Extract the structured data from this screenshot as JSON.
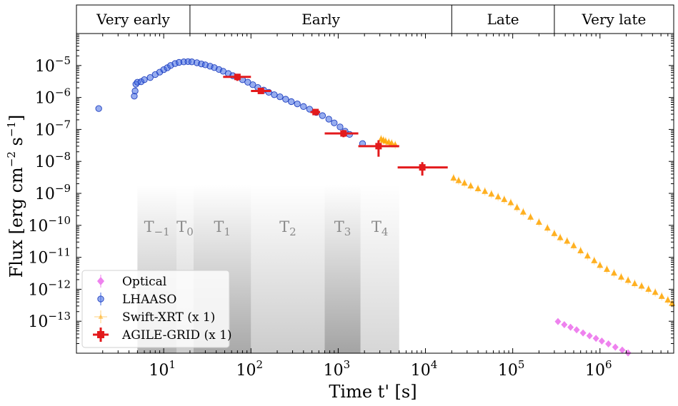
{
  "chart_data": {
    "type": "scatter",
    "xlabel": "Time t' [s]",
    "ylabel_parts": [
      "Flux [erg cm",
      "−2",
      " s",
      "−1",
      "]"
    ],
    "xscale": "log",
    "yscale": "log",
    "xlim": [
      1.0,
      7000000
    ],
    "ylim": [
      1e-14,
      0.0001
    ],
    "x_ticks": [
      {
        "value": 10,
        "base": "10",
        "exp": "1"
      },
      {
        "value": 100,
        "base": "10",
        "exp": "2"
      },
      {
        "value": 1000,
        "base": "10",
        "exp": "3"
      },
      {
        "value": 10000,
        "base": "10",
        "exp": "4"
      },
      {
        "value": 100000,
        "base": "10",
        "exp": "5"
      },
      {
        "value": 1000000,
        "base": "10",
        "exp": "6"
      }
    ],
    "y_ticks": [
      {
        "value": 1e-13,
        "base": "10",
        "exp": "−13"
      },
      {
        "value": 1e-12,
        "base": "10",
        "exp": "−12"
      },
      {
        "value": 1e-11,
        "base": "10",
        "exp": "−11"
      },
      {
        "value": 1e-10,
        "base": "10",
        "exp": "−10"
      },
      {
        "value": 1e-09,
        "base": "10",
        "exp": "−9"
      },
      {
        "value": 1e-08,
        "base": "10",
        "exp": "−8"
      },
      {
        "value": 1e-07,
        "base": "10",
        "exp": "−7"
      },
      {
        "value": 1e-06,
        "base": "10",
        "exp": "−6"
      },
      {
        "value": 1e-05,
        "base": "10",
        "exp": "−5"
      }
    ],
    "phases": [
      {
        "label": "Very early",
        "start": 1.0,
        "end": 20
      },
      {
        "label": "Early",
        "start": 20,
        "end": 20000
      },
      {
        "label": "Late",
        "start": 20000,
        "end": 300000
      },
      {
        "label": "Very late",
        "start": 300000,
        "end": 7000000
      }
    ],
    "intervals": [
      {
        "label": "T",
        "sub": "−1",
        "start": 5,
        "end": 14
      },
      {
        "label": "T",
        "sub": "0",
        "start": 14,
        "end": 22
      },
      {
        "label": "T",
        "sub": "1",
        "start": 22,
        "end": 100
      },
      {
        "label": "T",
        "sub": "2",
        "start": 100,
        "end": 700
      },
      {
        "label": "T",
        "sub": "3",
        "start": 700,
        "end": 1800
      },
      {
        "label": "T",
        "sub": "4",
        "start": 1800,
        "end": 5000
      }
    ],
    "legend": [
      {
        "label": "Optical",
        "color": "#ee82ee",
        "marker": "diamond"
      },
      {
        "label": "LHAASO",
        "color": "#4169e1",
        "marker": "circle"
      },
      {
        "label": "Swift-XRT (x 1)",
        "color": "#ffa500",
        "marker": "triangle"
      },
      {
        "label": "AGILE-GRID (x 1)",
        "color": "#e31a1c",
        "marker": "square"
      }
    ],
    "series": [
      {
        "name": "LHAASO",
        "color": "#4169e1",
        "points": [
          [
            1.8,
            4.5e-07
          ],
          [
            4.6,
            1.1e-06
          ],
          [
            4.7,
            1.6e-06
          ],
          [
            4.8,
            2.6e-06
          ],
          [
            5.0,
            3e-06
          ],
          [
            5.5,
            3.1e-06
          ],
          [
            6.0,
            3.6e-06
          ],
          [
            7.0,
            4.2e-06
          ],
          [
            8.0,
            5.2e-06
          ],
          [
            9.0,
            6.2e-06
          ],
          [
            10.0,
            7.4e-06
          ],
          [
            11.0,
            8.5e-06
          ],
          [
            12.0,
            1e-05
          ],
          [
            13.5,
            1.15e-05
          ],
          [
            15.0,
            1.25e-05
          ],
          [
            17.0,
            1.3e-05
          ],
          [
            19.0,
            1.32e-05
          ],
          [
            21.0,
            1.3e-05
          ],
          [
            24.0,
            1.22e-05
          ],
          [
            27.0,
            1.12e-05
          ],
          [
            30.0,
            1.05e-05
          ],
          [
            34.0,
            9.5e-06
          ],
          [
            38.0,
            8.6e-06
          ],
          [
            43.0,
            7.5e-06
          ],
          [
            48.0,
            6.6e-06
          ],
          [
            55.0,
            5.6e-06
          ],
          [
            62.0,
            4.8e-06
          ],
          [
            70.0,
            4.3e-06
          ],
          [
            80.0,
            3.6e-06
          ],
          [
            92.0,
            3e-06
          ],
          [
            105.0,
            2.5e-06
          ],
          [
            120.0,
            2.05e-06
          ],
          [
            140.0,
            1.7e-06
          ],
          [
            160.0,
            1.45e-06
          ],
          [
            185.0,
            1.22e-06
          ],
          [
            215.0,
            1.05e-06
          ],
          [
            250.0,
            8.8e-07
          ],
          [
            290.0,
            7.4e-07
          ],
          [
            340.0,
            6.3e-07
          ],
          [
            400.0,
            5.2e-07
          ],
          [
            470.0,
            4.3e-07
          ],
          [
            560.0,
            3.4e-07
          ],
          [
            660.0,
            2.7e-07
          ],
          [
            780.0,
            2.1e-07
          ],
          [
            900.0,
            1.6e-07
          ],
          [
            1050.0,
            1.2e-07
          ],
          [
            1200.0,
            8.8e-08
          ],
          [
            1350.0,
            7e-08
          ],
          [
            1900.0,
            3.6e-08
          ]
        ]
      },
      {
        "name": "Swift-XRT",
        "color": "#ffa500",
        "points": [
          [
            3100,
            5e-08
          ],
          [
            3300,
            4.6e-08
          ],
          [
            3500,
            4.3e-08
          ],
          [
            3800,
            4e-08
          ],
          [
            4100,
            3.7e-08
          ],
          [
            4500,
            3.3e-08
          ],
          [
            21000,
            3e-09
          ],
          [
            24000,
            2.5e-09
          ],
          [
            28000,
            2.1e-09
          ],
          [
            33000,
            1.7e-09
          ],
          [
            40000,
            1.4e-09
          ],
          [
            48000,
            1.15e-09
          ],
          [
            57000,
            9.5e-10
          ],
          [
            68000,
            7.8e-10
          ],
          [
            80000,
            6.4e-10
          ],
          [
            95000,
            5.1e-10
          ],
          [
            112000,
            3.6e-10
          ],
          [
            132000,
            2.6e-10
          ],
          [
            160000,
            1.8e-10
          ],
          [
            200000,
            1.25e-10
          ],
          [
            250000,
            8.2e-11
          ],
          [
            300000,
            5.5e-11
          ],
          [
            350000,
            4.1e-11
          ],
          [
            420000,
            3.2e-11
          ],
          [
            500000,
            2.3e-11
          ],
          [
            600000,
            1.6e-11
          ],
          [
            720000,
            1.1e-11
          ],
          [
            860000,
            7.8e-12
          ],
          [
            1000000,
            5.6e-12
          ],
          [
            1200000,
            4.2e-12
          ],
          [
            1450000,
            3.2e-12
          ],
          [
            1750000,
            2.4e-12
          ],
          [
            2100000,
            1.9e-12
          ],
          [
            2500000,
            1.5e-12
          ],
          [
            3000000,
            1.25e-12
          ],
          [
            3600000,
            1e-12
          ],
          [
            4300000,
            8e-13
          ],
          [
            5100000,
            6e-13
          ],
          [
            6000000,
            4.6e-13
          ],
          [
            6700000,
            3.6e-13
          ]
        ]
      },
      {
        "name": "Optical",
        "color": "#ee82ee",
        "points": [
          [
            330000,
            9.8e-14
          ],
          [
            390000,
            7.8e-14
          ],
          [
            460000,
            6.5e-14
          ],
          [
            540000,
            5.4e-14
          ],
          [
            640000,
            4.3e-14
          ],
          [
            760000,
            3.5e-14
          ],
          [
            900000,
            2.9e-14
          ],
          [
            1050000,
            2.4e-14
          ],
          [
            1250000,
            1.95e-14
          ],
          [
            1500000,
            1.55e-14
          ],
          [
            1800000,
            1.25e-14
          ],
          [
            2100000,
            1.02e-14
          ]
        ]
      },
      {
        "name": "AGILE-GRID",
        "color": "#e31a1c",
        "points": [
          {
            "x": 70,
            "y": 4.4e-06,
            "xlo": 48,
            "xhi": 100,
            "ylo": 3.3e-06,
            "yhi": 5.4e-06
          },
          {
            "x": 130,
            "y": 1.6e-06,
            "xlo": 100,
            "xhi": 170,
            "ylo": 1.3e-06,
            "yhi": 1.9e-06
          },
          {
            "x": 550,
            "y": 3.5e-07,
            "xlo": 480,
            "xhi": 620,
            "ylo": 2.9e-07,
            "yhi": 4.2e-07
          },
          {
            "x": 1150,
            "y": 7.5e-08,
            "xlo": 700,
            "xhi": 1700,
            "ylo": 5.7e-08,
            "yhi": 9.6e-08
          },
          {
            "x": 2900,
            "y": 3e-08,
            "xlo": 1700,
            "xhi": 5000,
            "ylo": 1.4e-08,
            "yhi": 4.6e-08
          },
          {
            "x": 9200,
            "y": 6.5e-09,
            "xlo": 4800,
            "xhi": 18000,
            "ylo": 3.6e-09,
            "yhi": 9.5e-09
          }
        ]
      }
    ]
  }
}
